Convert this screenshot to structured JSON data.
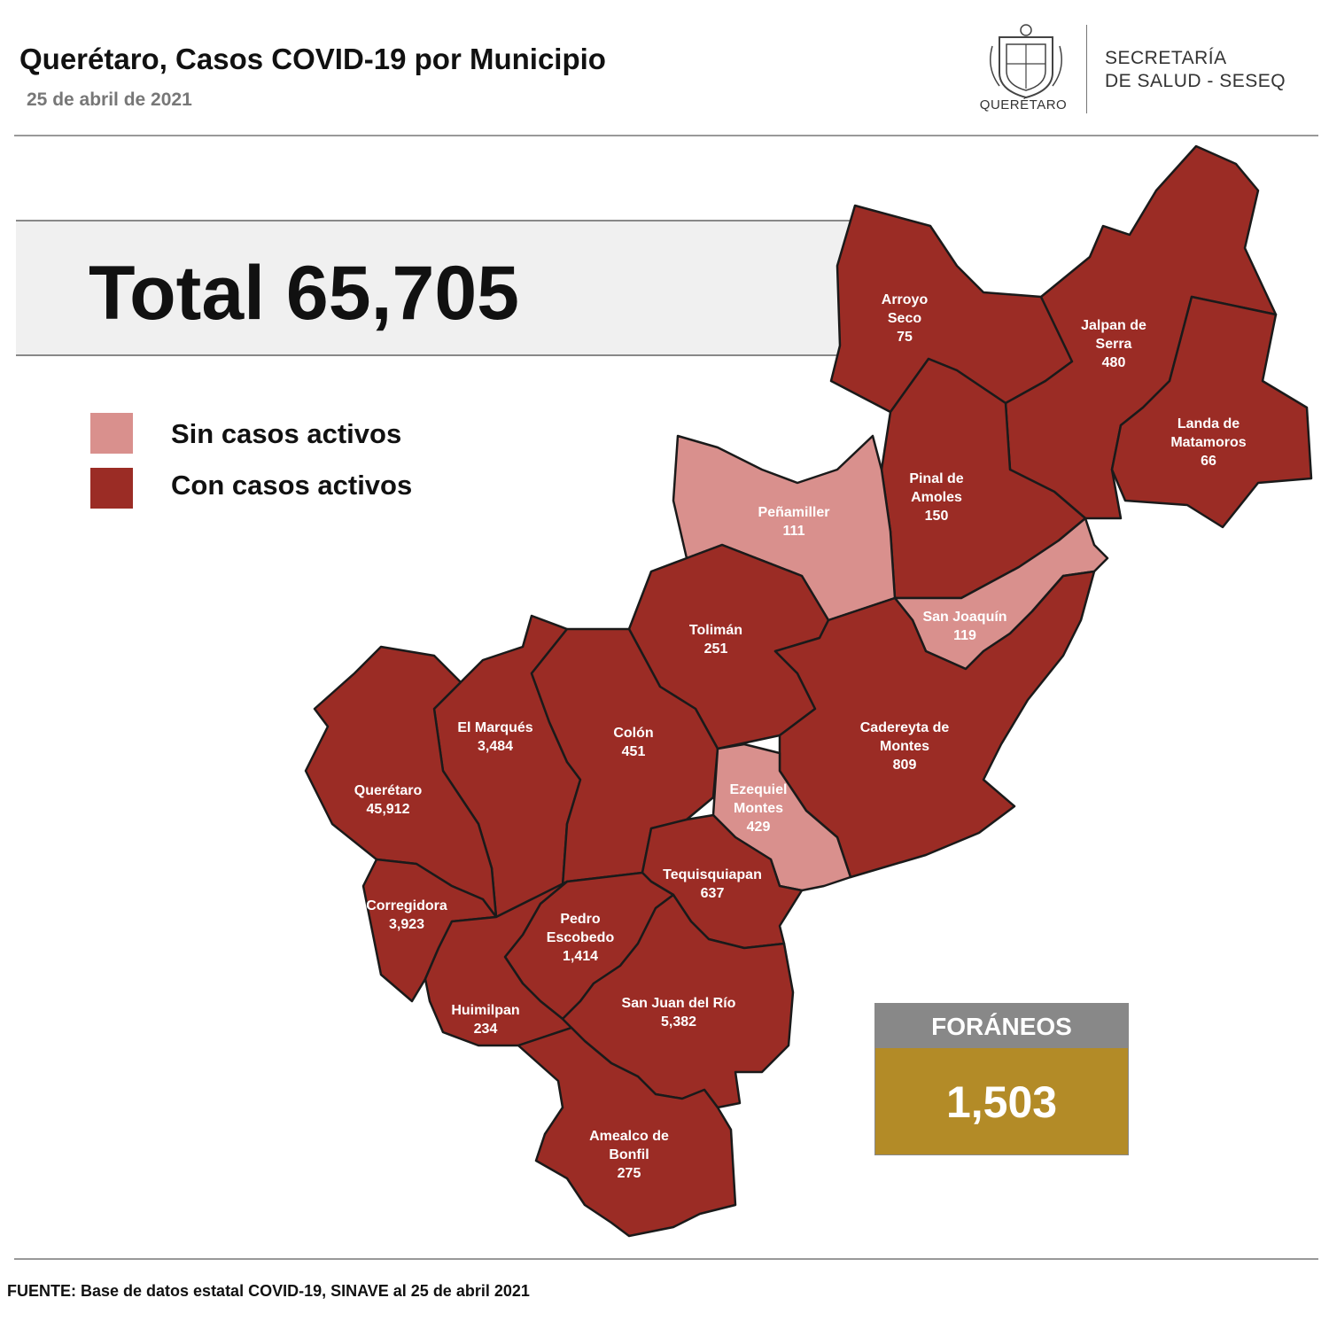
{
  "header": {
    "title": "Querétaro, Casos COVID-19 por Municipio",
    "date": "25 de abril de 2021",
    "logo_text": "QUERÉTARO",
    "agency_line1": "SECRETARÍA",
    "agency_line2": "DE SALUD - SESEQ"
  },
  "total": "Total 65,705",
  "legend": [
    {
      "label": "Sin casos activos",
      "color": "#d9908d"
    },
    {
      "label": "Con casos activos",
      "color": "#9b2c25"
    }
  ],
  "colors": {
    "active": "#9b2c25",
    "inactive": "#d9908d",
    "border": "#1a1a1a"
  },
  "municipalities": [
    {
      "name": [
        "Arroyo",
        "Seco"
      ],
      "cases": "75",
      "status": "active"
    },
    {
      "name": [
        "Jalpan de",
        "Serra"
      ],
      "cases": "480",
      "status": "active"
    },
    {
      "name": [
        "Landa de",
        "Matamoros"
      ],
      "cases": "66",
      "status": "active"
    },
    {
      "name": [
        "Pinal de",
        "Amoles"
      ],
      "cases": "150",
      "status": "active"
    },
    {
      "name": [
        "Peñamiller"
      ],
      "cases": "111",
      "status": "inactive"
    },
    {
      "name": [
        "San Joaquín"
      ],
      "cases": "119",
      "status": "inactive"
    },
    {
      "name": [
        "Tolimán"
      ],
      "cases": "251",
      "status": "active"
    },
    {
      "name": [
        "Cadereyta de",
        "Montes"
      ],
      "cases": "809",
      "status": "active"
    },
    {
      "name": [
        "El  Marqués"
      ],
      "cases": "3,484",
      "status": "active"
    },
    {
      "name": [
        "Colón"
      ],
      "cases": "451",
      "status": "active"
    },
    {
      "name": [
        "Querétaro"
      ],
      "cases": "45,912",
      "status": "active"
    },
    {
      "name": [
        "Ezequiel",
        "Montes"
      ],
      "cases": "429",
      "status": "inactive"
    },
    {
      "name": [
        "Tequisquiapan"
      ],
      "cases": "637",
      "status": "active"
    },
    {
      "name": [
        "Corregidora"
      ],
      "cases": "3,923",
      "status": "active"
    },
    {
      "name": [
        "Pedro",
        "Escobedo"
      ],
      "cases": "1,414",
      "status": "active"
    },
    {
      "name": [
        "Huimilpan"
      ],
      "cases": "234",
      "status": "active"
    },
    {
      "name": [
        "San Juan del Río"
      ],
      "cases": "5,382",
      "status": "active"
    },
    {
      "name": [
        "Amealco de",
        "Bonfil"
      ],
      "cases": "275",
      "status": "active"
    }
  ],
  "foraneos": {
    "label": "FORÁNEOS",
    "value": "1,503"
  },
  "source": "FUENTE: Base de datos estatal COVID-19, SINAVE al 25 de abril 2021"
}
